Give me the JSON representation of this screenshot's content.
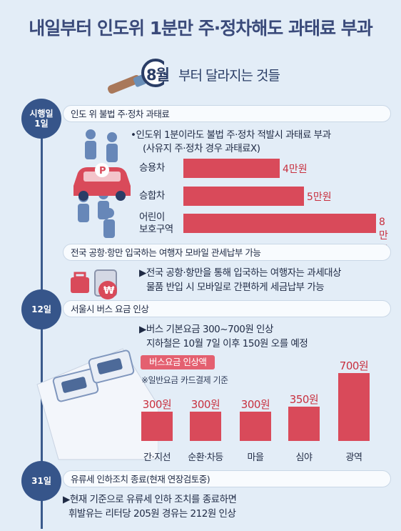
{
  "title": "내일부터 인도위 1분만 주·정차해도 과태료 부과",
  "subtitle": {
    "highlight": "8월",
    "rest": "부터 달라지는 것들"
  },
  "colors": {
    "navy": "#36558a",
    "bar": "#d94a5a",
    "value": "#c8303f",
    "background": "#e3edf7"
  },
  "icons": [
    "magnifier-icon",
    "person-icon",
    "car-icon",
    "luggage-icon"
  ],
  "sections": [
    {
      "marker": "시행일\n1일",
      "heading": "인도 위 불법 주·정차 과태료",
      "desc": [
        "•인도위 1분이라도 불법 주·정차 적발시 과태료 부과",
        "(사유지 주·정차 경우 과태료X)"
      ]
    },
    {
      "marker": "",
      "heading": "전국 공항·항만 입국하는 여행자 모바일 관세납부 가능",
      "desc": [
        "▶전국 공항·항만을 통해 입국하는 여행자는 과세대상",
        "물품 반입 시 모바일로 간편하게 세금납부 가능"
      ]
    },
    {
      "marker": "12일",
      "heading": "서울시 버스 요금 인상",
      "desc": [
        "▶버스 기본요금 300~700원 인상",
        "지하철은 10월 7일 이후 150원 오를 예정"
      ],
      "tag": "버스요금 인상액",
      "note": "※일반요금 카드결제 기준"
    },
    {
      "marker": "31일",
      "heading": "유류세 인하조치 종료(현재 연장검토중)",
      "desc": [
        "▶현재 기준으로 유류세 인하 조치를 종료하면",
        "휘발유는 리터당 205원 경유는 212원 인상"
      ]
    }
  ],
  "chart_data": [
    {
      "type": "bar",
      "orientation": "horizontal",
      "categories": [
        "승용차",
        "승합차",
        "어린이\n보호구역"
      ],
      "values": [
        4,
        5,
        8
      ],
      "value_labels": [
        "4만원",
        "5만원",
        "8만원"
      ],
      "unit": "만원",
      "xlim": [
        0,
        8
      ]
    },
    {
      "type": "bar",
      "orientation": "vertical",
      "categories": [
        "간·지선",
        "순환·차등",
        "마을",
        "심야",
        "광역"
      ],
      "values": [
        300,
        300,
        300,
        350,
        700
      ],
      "value_labels": [
        "300원",
        "300원",
        "300원",
        "350원",
        "700원"
      ],
      "unit": "원",
      "ylim": [
        0,
        700
      ]
    }
  ]
}
